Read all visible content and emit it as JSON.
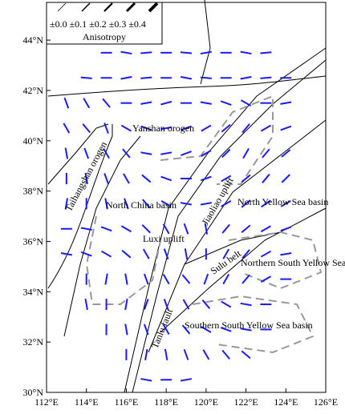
{
  "map": {
    "legend": {
      "scale": "±0.0 ±0.1 ±0.2 ±0.3 ±0.4",
      "title": "Anisotropy"
    },
    "xticks": [
      {
        "value": 112,
        "label": "112°E"
      },
      {
        "value": 114,
        "label": "114°E"
      },
      {
        "value": 116,
        "label": "116°E"
      },
      {
        "value": 118,
        "label": "118°E"
      },
      {
        "value": 120,
        "label": "120°E"
      },
      {
        "value": 122,
        "label": "122°E"
      },
      {
        "value": 124,
        "label": "124°E"
      },
      {
        "value": 126,
        "label": "126°E"
      }
    ],
    "yticks": [
      {
        "value": 30,
        "label": "30°N"
      },
      {
        "value": 32,
        "label": "32°N"
      },
      {
        "value": 34,
        "label": "34°N"
      },
      {
        "value": 36,
        "label": "36°N"
      },
      {
        "value": 38,
        "label": "38°N"
      },
      {
        "value": 40,
        "label": "40°N"
      },
      {
        "value": 42,
        "label": "42°N"
      },
      {
        "value": 44,
        "label": "44°N"
      }
    ],
    "xlim": [
      112,
      126
    ],
    "ylim": [
      30,
      45.5
    ],
    "bar_color": "#1a1aff",
    "labels": [
      "Yanshan orogen",
      "Taihangshan orogen",
      "North China basin",
      "Luxi uplift",
      "Jiaoliao uplift",
      "North Yellow Sea basin",
      "Sulu belt",
      "Northern South Yellow Sea basin",
      "Tanlu fault",
      "Southern South Yellow Sea basin"
    ],
    "anisotropy": [
      {
        "lat": 43.5,
        "lon": [
          115,
          116,
          117,
          118,
          119,
          120,
          121,
          122,
          123
        ],
        "azimuth": [
          90,
          100,
          85,
          90,
          95,
          80,
          90,
          100,
          85
        ]
      },
      {
        "lat": 42.5,
        "lon": [
          114,
          115,
          116,
          117,
          118,
          119,
          120,
          121,
          122,
          123,
          124
        ],
        "azimuth": [
          95,
          90,
          80,
          85,
          90,
          100,
          95,
          90,
          80,
          85,
          90
        ]
      },
      {
        "lat": 41.5,
        "lon": [
          113,
          114,
          115,
          116,
          117,
          118,
          119,
          120,
          121,
          122,
          123,
          124
        ],
        "azimuth": [
          160,
          150,
          140,
          90,
          80,
          75,
          90,
          100,
          110,
          120,
          90,
          80
        ]
      },
      {
        "lat": 40.5,
        "lon": [
          113,
          114,
          115,
          116,
          117,
          118,
          119,
          120,
          121,
          122,
          123,
          124
        ],
        "azimuth": [
          150,
          140,
          160,
          120,
          110,
          80,
          70,
          60,
          50,
          40,
          60,
          70
        ]
      },
      {
        "lat": 39.5,
        "lon": [
          113,
          114,
          115,
          116,
          117,
          118,
          119,
          120,
          121,
          122,
          123,
          124
        ],
        "azimuth": [
          170,
          160,
          150,
          140,
          100,
          80,
          70,
          60,
          45,
          30,
          40,
          50
        ]
      },
      {
        "lat": 38.5,
        "lon": [
          113,
          114,
          115,
          116,
          117,
          118,
          119,
          120,
          121,
          122,
          123,
          124
        ],
        "azimuth": [
          0,
          170,
          160,
          150,
          130,
          110,
          90,
          70,
          60,
          50,
          40,
          45
        ]
      },
      {
        "lat": 37.5,
        "lon": [
          113,
          114,
          115,
          116,
          117,
          118,
          119,
          120,
          121,
          122,
          123,
          124
        ],
        "azimuth": [
          10,
          0,
          170,
          160,
          140,
          120,
          100,
          80,
          60,
          50,
          55,
          60
        ]
      },
      {
        "lat": 36.5,
        "lon": [
          113,
          114,
          115,
          116,
          117,
          118,
          119,
          120,
          121,
          122,
          123,
          124
        ],
        "azimuth": [
          90,
          100,
          110,
          120,
          135,
          150,
          160,
          170,
          40,
          50,
          60,
          70
        ]
      },
      {
        "lat": 35.5,
        "lon": [
          113,
          114,
          115,
          116,
          117,
          118,
          119,
          120,
          121,
          122,
          123,
          124
        ],
        "azimuth": [
          100,
          110,
          120,
          130,
          150,
          160,
          170,
          0,
          30,
          40,
          60,
          80
        ]
      },
      {
        "lat": 34.5,
        "lon": [
          114,
          115,
          116,
          117,
          118,
          119,
          120,
          121,
          122,
          123,
          124
        ],
        "azimuth": [
          0,
          10,
          170,
          160,
          150,
          140,
          20,
          30,
          40,
          60,
          90
        ]
      },
      {
        "lat": 33.5,
        "lon": [
          114,
          115,
          116,
          117,
          118,
          119,
          120,
          121,
          122,
          123
        ],
        "azimuth": [
          170,
          0,
          10,
          20,
          160,
          150,
          140,
          120,
          100,
          90
        ]
      },
      {
        "lat": 32.5,
        "lon": [
          115,
          116,
          117,
          118,
          119,
          120,
          121,
          122,
          123
        ],
        "azimuth": [
          0,
          170,
          160,
          150,
          140,
          120,
          110,
          100,
          90
        ]
      },
      {
        "lat": 31.5,
        "lon": [
          116,
          117,
          118,
          119,
          120,
          121,
          122
        ],
        "azimuth": [
          0,
          10,
          170,
          160,
          150,
          140,
          130
        ]
      },
      {
        "lat": 30.5,
        "lon": [
          117,
          118,
          119
        ],
        "azimuth": [
          100,
          90,
          80
        ]
      }
    ]
  }
}
